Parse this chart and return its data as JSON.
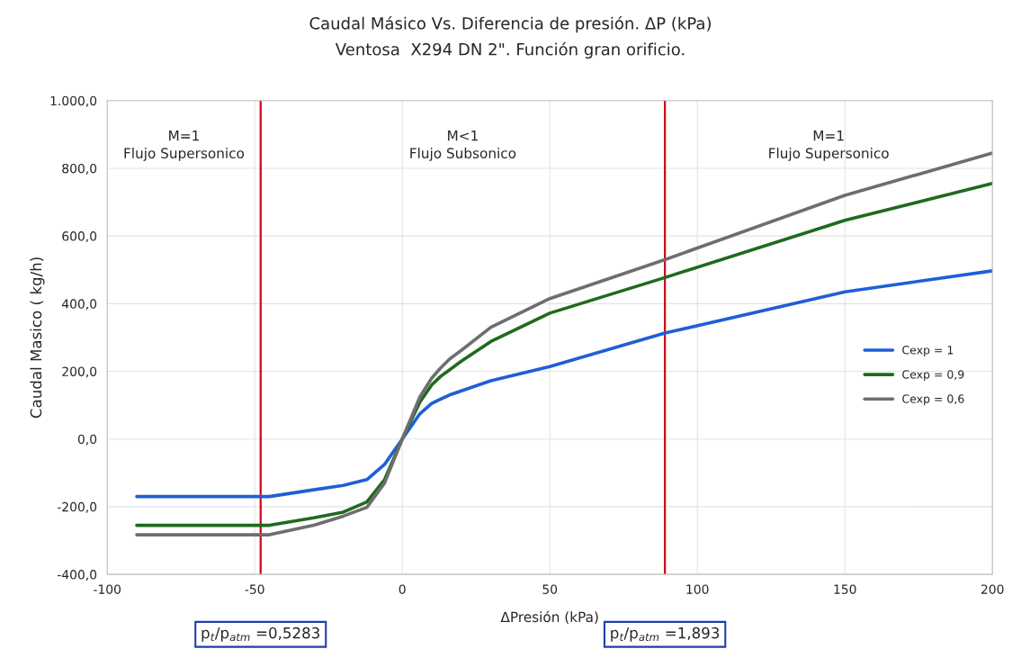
{
  "chart_data": {
    "type": "line",
    "title": "Caudal Másico Vs. Diferencia de presión. ΔP (kPa)",
    "subtitle": "Ventosa  X294 DN 2\". Función gran orificio.",
    "xlabel": "ΔPresión (kPa)",
    "ylabel": "Caudal Masico ( kg/h)",
    "x": [
      -90,
      -45,
      -30,
      -20,
      -12,
      -6,
      0,
      6,
      10,
      13,
      16,
      20,
      30,
      50,
      89,
      150,
      200
    ],
    "series": [
      {
        "name": "Cexp = 1",
        "color": "#1f5fd6",
        "values": [
          -170,
          -170,
          -150,
          -137,
          -120,
          -75,
          0,
          75,
          105,
          118,
          130,
          142,
          172,
          214,
          313,
          435,
          497
        ]
      },
      {
        "name": "Cexp = 0,9",
        "color": "#1e6b1e",
        "values": [
          -255,
          -255,
          -233,
          -216,
          -186,
          -120,
          0,
          110,
          160,
          185,
          204,
          230,
          288,
          372,
          477,
          646,
          755
        ]
      },
      {
        "name": "Cexp = 0,6",
        "color": "#6e6e70",
        "values": [
          -283,
          -283,
          -255,
          -228,
          -202,
          -130,
          0,
          125,
          180,
          210,
          236,
          262,
          330,
          415,
          530,
          720,
          845
        ]
      }
    ],
    "xlim": [
      -100,
      200
    ],
    "xticks": [
      -100,
      -50,
      0,
      50,
      100,
      150,
      200
    ],
    "ylim": [
      -400,
      1000
    ],
    "yticks": [
      {
        "value": -400,
        "label": "-400,0"
      },
      {
        "value": -200,
        "label": "-200,0"
      },
      {
        "value": 0,
        "label": "0,0"
      },
      {
        "value": 200,
        "label": "200,0"
      },
      {
        "value": 400,
        "label": "400,0"
      },
      {
        "value": 600,
        "label": "600,0"
      },
      {
        "value": 800,
        "label": "800,0"
      },
      {
        "value": 1000,
        "label": "1.000,0"
      }
    ],
    "ref_lines": [
      {
        "axis": "x",
        "value": -48,
        "color": "#d0021b"
      },
      {
        "axis": "x",
        "value": 89,
        "color": "#d0021b"
      }
    ],
    "annotations": [
      "M=1\nFlujo Supersonico",
      "M<1\nFlujo Subsonico",
      "M=1\nFlujo Supersonico",
      "p$_{t}$/p$_{atm}$ =0,5283",
      "p$_{t}$/p$_{atm}$ =1,893"
    ],
    "grid": true,
    "legend": "right",
    "marker": "none",
    "line_style": "solid"
  }
}
